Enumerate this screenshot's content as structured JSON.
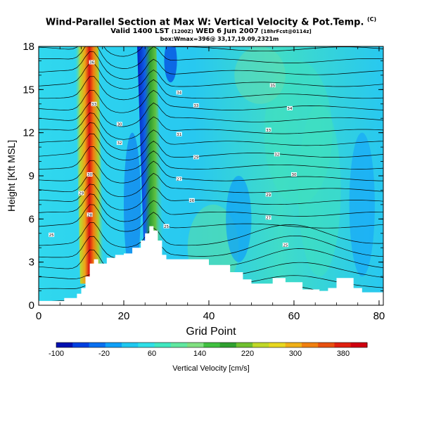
{
  "title": {
    "main": "Wind-Parallel Section at Max W: Vertical Velocity & Pot.Temp.",
    "main_suffix": "(C)",
    "line2_a": "Valid 1400 LST",
    "line2_b": "(1200Z)",
    "line2_c": "WED 6 Jun 2007",
    "line2_d": "[18hrFcst@0114z]",
    "line3": "box:Wmax=396@ 33,17,19.09,2321m"
  },
  "chart_data": {
    "type": "heatmap",
    "xlabel": "Grid Point",
    "ylabel": "Height [Kft MSL]",
    "xlim": [
      0,
      81
    ],
    "ylim": [
      0,
      18
    ],
    "x_ticks": [
      "0",
      "20",
      "40",
      "60",
      "80"
    ],
    "y_ticks": [
      "0",
      "3",
      "6",
      "9",
      "12",
      "15",
      "18"
    ],
    "variable": "Vertical Velocity",
    "colorbar_label": "Vertical Velocity [cm/s]",
    "colorbar_ticks": [
      "-100",
      "-20",
      "60",
      "140",
      "220",
      "300",
      "380"
    ],
    "colorbar_range": [
      -100,
      420
    ],
    "colorbar_colors": [
      "#0010b0",
      "#0040e0",
      "#0a70f0",
      "#10a0f8",
      "#20c8f0",
      "#30e0e8",
      "#40e8c0",
      "#60e8a0",
      "#80e080",
      "#40c040",
      "#30a030",
      "#70c030",
      "#c0d828",
      "#e8d820",
      "#f0b018",
      "#f08010",
      "#e85010",
      "#e02010",
      "#d00010"
    ],
    "terrain_kft": [
      [
        0,
        0.3
      ],
      [
        4,
        0.3
      ],
      [
        6,
        0.5
      ],
      [
        9,
        0.8
      ],
      [
        10,
        1.2
      ],
      [
        11,
        2.0
      ],
      [
        12,
        2.9
      ],
      [
        13,
        3.2
      ],
      [
        14,
        2.9
      ],
      [
        16,
        3.3
      ],
      [
        18,
        3.5
      ],
      [
        20,
        3.6
      ],
      [
        22,
        4.0
      ],
      [
        24,
        4.5
      ],
      [
        25,
        5.0
      ],
      [
        26,
        5.5
      ],
      [
        27,
        5.2
      ],
      [
        28,
        4.5
      ],
      [
        29,
        3.5
      ],
      [
        30,
        3.2
      ],
      [
        35,
        3.2
      ],
      [
        40,
        2.8
      ],
      [
        45,
        2.3
      ],
      [
        48,
        1.8
      ],
      [
        50,
        1.5
      ],
      [
        55,
        1.9
      ],
      [
        58,
        1.6
      ],
      [
        62,
        1.1
      ],
      [
        66,
        1.0
      ],
      [
        68,
        1.2
      ],
      [
        70,
        1.9
      ],
      [
        72,
        1.9
      ],
      [
        74,
        1.2
      ],
      [
        76,
        0.9
      ],
      [
        81,
        1.0
      ]
    ],
    "updraft_max_cm_s": 396,
    "updraft_cores": [
      {
        "x": 12.5,
        "z_top": 18,
        "peak_cm_s": 396
      },
      {
        "x": 27.0,
        "z_top": 18,
        "peak_cm_s": 180
      }
    ],
    "contour_labels": [
      {
        "x": 3,
        "z": 4.9,
        "text": "25"
      },
      {
        "x": 12,
        "z": 6.3,
        "text": "28"
      },
      {
        "x": 10,
        "z": 7.8,
        "text": "29"
      },
      {
        "x": 12,
        "z": 9.1,
        "text": "30"
      },
      {
        "x": 12.5,
        "z": 16.9,
        "text": "36"
      },
      {
        "x": 13,
        "z": 14.0,
        "text": "33"
      },
      {
        "x": 19,
        "z": 12.6,
        "text": "30"
      },
      {
        "x": 19,
        "z": 11.3,
        "text": "32"
      },
      {
        "x": 33,
        "z": 14.8,
        "text": "34"
      },
      {
        "x": 33,
        "z": 11.9,
        "text": "31"
      },
      {
        "x": 37,
        "z": 13.9,
        "text": "33"
      },
      {
        "x": 37,
        "z": 10.3,
        "text": "29"
      },
      {
        "x": 33,
        "z": 8.8,
        "text": "27"
      },
      {
        "x": 36,
        "z": 7.3,
        "text": "26"
      },
      {
        "x": 30,
        "z": 5.5,
        "text": "25"
      },
      {
        "x": 55,
        "z": 15.3,
        "text": "35"
      },
      {
        "x": 59,
        "z": 13.7,
        "text": "34"
      },
      {
        "x": 54,
        "z": 12.2,
        "text": "33"
      },
      {
        "x": 56,
        "z": 10.5,
        "text": "32"
      },
      {
        "x": 60,
        "z": 9.1,
        "text": "30"
      },
      {
        "x": 54,
        "z": 7.7,
        "text": "29"
      },
      {
        "x": 54,
        "z": 6.1,
        "text": "27"
      },
      {
        "x": 58,
        "z": 4.2,
        "text": "25"
      }
    ]
  }
}
